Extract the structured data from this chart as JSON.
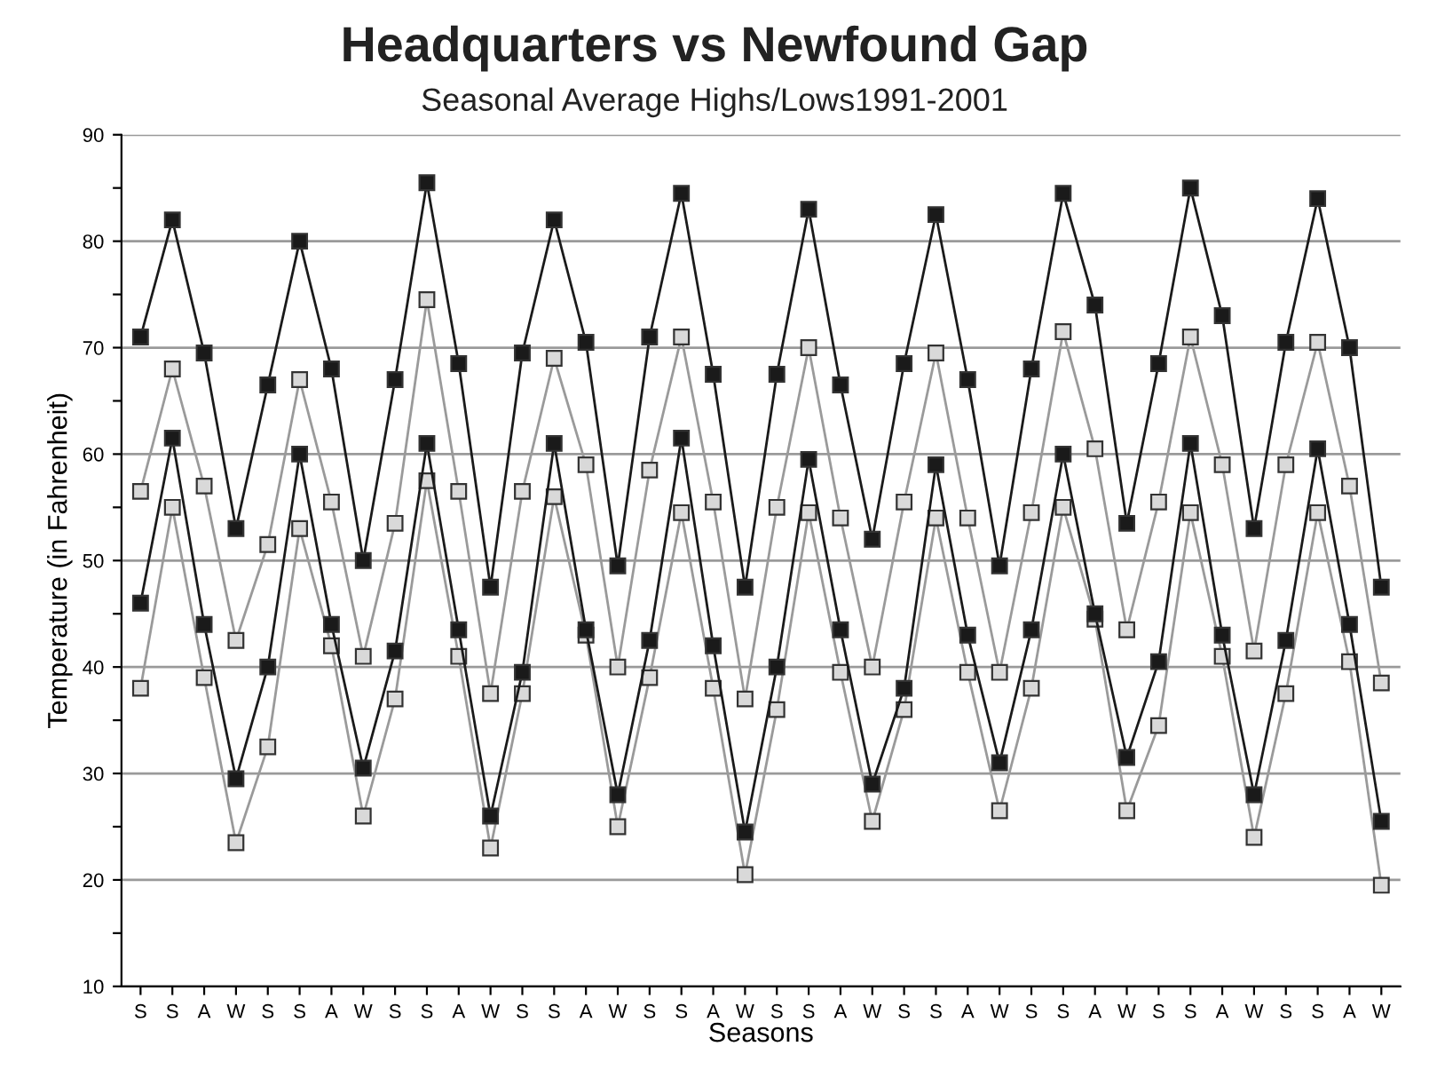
{
  "chart_data": {
    "type": "line",
    "title": "Headquarters vs Newfound Gap",
    "subtitle": "Seasonal Average Highs/Lows1991-2001",
    "xlabel": "Seasons",
    "ylabel": "Temperature (in Fahrenheit)",
    "categories": [
      "S",
      "S",
      "A",
      "W",
      "S",
      "S",
      "A",
      "W",
      "S",
      "S",
      "A",
      "W",
      "S",
      "S",
      "A",
      "W",
      "S",
      "S",
      "A",
      "W",
      "S",
      "S",
      "A",
      "W",
      "S",
      "S",
      "A",
      "W",
      "S",
      "S",
      "A",
      "W",
      "S",
      "S",
      "A",
      "W",
      "S",
      "S",
      "A",
      "W"
    ],
    "series": [
      {
        "color": "#1a1a1a",
        "values": [
          71,
          82,
          69.5,
          53,
          66.5,
          80,
          68,
          50,
          67,
          85.5,
          68.5,
          47.5,
          69.5,
          82,
          70.5,
          49.5,
          71,
          84.5,
          67.5,
          47.5,
          67.5,
          83,
          66.5,
          52,
          68.5,
          82.5,
          67,
          49.5,
          68,
          84.5,
          74,
          53.5,
          68.5,
          85,
          73,
          53,
          70.5,
          84,
          70,
          47.5
        ]
      },
      {
        "color": "#d9d9d9",
        "values": [
          56.5,
          68,
          57,
          42.5,
          51.5,
          67,
          55.5,
          41,
          53.5,
          74.5,
          56.5,
          37.5,
          56.5,
          69,
          59,
          40,
          58.5,
          71,
          55.5,
          37,
          55,
          70,
          54,
          40,
          55.5,
          69.5,
          54,
          39.5,
          54.5,
          71.5,
          60.5,
          43.5,
          55.5,
          71,
          59,
          41.5,
          59,
          70.5,
          57,
          38.5
        ]
      },
      {
        "color": "#1a1a1a",
        "values": [
          46,
          61.5,
          44,
          29.5,
          40,
          60,
          44,
          30.5,
          41.5,
          61,
          43.5,
          26,
          39.5,
          61,
          43.5,
          28,
          42.5,
          61.5,
          42,
          24.5,
          40,
          59.5,
          43.5,
          29,
          38,
          59,
          43,
          31,
          43.5,
          60,
          45,
          31.5,
          40.5,
          61,
          43,
          28,
          42.5,
          60.5,
          44,
          25.5
        ]
      },
      {
        "color": "#d9d9d9",
        "values": [
          38,
          55,
          39,
          23.5,
          32.5,
          53,
          42,
          26,
          37,
          57.5,
          41,
          23,
          37.5,
          56,
          43,
          25,
          39,
          54.5,
          38,
          20.5,
          36,
          54.5,
          39.5,
          25.5,
          36,
          54,
          39.5,
          26.5,
          38,
          55,
          44.5,
          26.5,
          34.5,
          54.5,
          41,
          24,
          37.5,
          54.5,
          40.5,
          19.5
        ]
      }
    ],
    "ylim": [
      10,
      90
    ],
    "yticks": [
      10,
      {
        "value": 15,
        "label": null
      },
      20,
      {
        "value": 25,
        "label": null
      },
      30,
      {
        "value": 35,
        "label": null
      },
      40,
      {
        "value": 45,
        "label": null
      },
      50,
      {
        "value": 55,
        "label": null
      },
      60,
      {
        "value": 65,
        "label": null
      },
      70,
      {
        "value": 75,
        "label": null
      },
      80,
      {
        "value": 85,
        "label": null
      },
      90
    ],
    "grid": "y",
    "marker": "square",
    "line_style": "solid",
    "legend": false
  }
}
